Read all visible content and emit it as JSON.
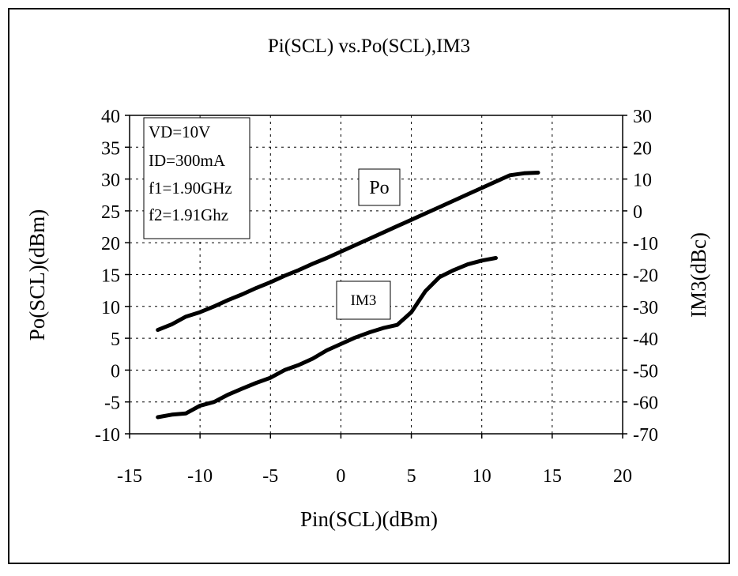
{
  "chart_data": {
    "type": "line",
    "title": "Pi(SCL) vs.Po(SCL),IM3",
    "xlabel": "Pin(SCL)(dBm)",
    "ylabel": "Po(SCL)(dBm)",
    "y2label": "IM3(dBc)",
    "xlim": [
      -15,
      20
    ],
    "ylim": [
      -10,
      40
    ],
    "y2lim": [
      -70,
      30
    ],
    "x_ticks": [
      "-15",
      "-10",
      "-5",
      "0",
      "5",
      "10",
      "15",
      "20"
    ],
    "y_ticks": [
      "-10",
      "-5",
      "0",
      "5",
      "10",
      "15",
      "20",
      "25",
      "30",
      "35",
      "40"
    ],
    "y2_ticks": [
      "-70",
      "-60",
      "-50",
      "-40",
      "-30",
      "-20",
      "-10",
      "0",
      "10",
      "20",
      "30"
    ],
    "grid": true,
    "notes": [
      "VD=10V",
      "ID=300mA",
      "f1=1.90GHz",
      "f2=1.91Ghz"
    ],
    "series": [
      {
        "name": "Po",
        "axis": "left",
        "color": "#000000",
        "x": [
          -13,
          -12,
          -11,
          -10,
          -9,
          -8,
          -7,
          -6,
          -5,
          -4,
          -3,
          -2,
          -1,
          0,
          1,
          2,
          3,
          4,
          5,
          6,
          7,
          8,
          9,
          10,
          11,
          12,
          13,
          14
        ],
        "y": [
          6.3,
          7.2,
          8.4,
          9.1,
          10.0,
          11.0,
          11.9,
          12.9,
          13.8,
          14.8,
          15.7,
          16.7,
          17.6,
          18.6,
          19.6,
          20.6,
          21.6,
          22.6,
          23.6,
          24.6,
          25.6,
          26.6,
          27.6,
          28.6,
          29.6,
          30.6,
          30.9,
          31.0
        ]
      },
      {
        "name": "IM3",
        "axis": "right",
        "color": "#000000",
        "x": [
          -13,
          -12,
          -11,
          -10,
          -9,
          -8,
          -7,
          -6,
          -5,
          -4,
          -3,
          -2,
          -1,
          0,
          1,
          2,
          3,
          4,
          5,
          6,
          7,
          8,
          9,
          10,
          11
        ],
        "y": [
          -64.8,
          -64.0,
          -63.6,
          -61.2,
          -60.0,
          -57.7,
          -55.8,
          -54.0,
          -52.4,
          -50.0,
          -48.4,
          -46.4,
          -43.8,
          -41.8,
          -39.8,
          -38.2,
          -36.8,
          -35.8,
          -31.8,
          -25.2,
          -20.8,
          -18.6,
          -16.8,
          -15.6,
          -14.8
        ]
      }
    ]
  }
}
